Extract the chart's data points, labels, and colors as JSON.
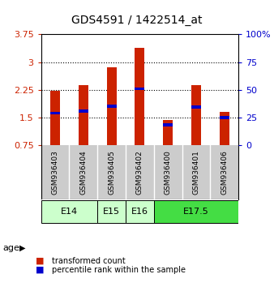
{
  "title": "GDS4591 / 1422514_at",
  "samples": [
    "GSM936403",
    "GSM936404",
    "GSM936405",
    "GSM936402",
    "GSM936400",
    "GSM936401",
    "GSM936406"
  ],
  "transformed_counts": [
    2.22,
    2.38,
    2.85,
    3.38,
    1.43,
    2.38,
    1.65
  ],
  "percentile_ranks": [
    1.62,
    1.68,
    1.8,
    2.28,
    1.3,
    1.78,
    1.5
  ],
  "bar_bottom": 0.75,
  "ylim": [
    0.75,
    3.75
  ],
  "yticks": [
    0.75,
    1.5,
    2.25,
    3.0,
    3.75
  ],
  "ytick_labels": [
    "0.75",
    "1.5",
    "2.25",
    "3",
    "3.75"
  ],
  "right_yticks": [
    0,
    25,
    50,
    75,
    100
  ],
  "right_ytick_labels": [
    "0",
    "25",
    "50",
    "75",
    "100%"
  ],
  "bar_color": "#cc2200",
  "percentile_color": "#0000cc",
  "age_groups": [
    {
      "label": "E14",
      "start": 0,
      "end": 2,
      "color": "#ccffcc"
    },
    {
      "label": "E15",
      "start": 2,
      "end": 3,
      "color": "#ccffcc"
    },
    {
      "label": "E16",
      "start": 3,
      "end": 4,
      "color": "#ccffcc"
    },
    {
      "label": "E17.5",
      "start": 4,
      "end": 7,
      "color": "#44dd44"
    }
  ],
  "bar_width": 0.35,
  "grid_color": "#000000",
  "background_color": "#ffffff",
  "sample_bg_color": "#cccccc",
  "left_label_color": "#cc2200",
  "right_label_color": "#0000cc",
  "legend_items": [
    "transformed count",
    "percentile rank within the sample"
  ],
  "legend_colors": [
    "#cc2200",
    "#0000cc"
  ]
}
